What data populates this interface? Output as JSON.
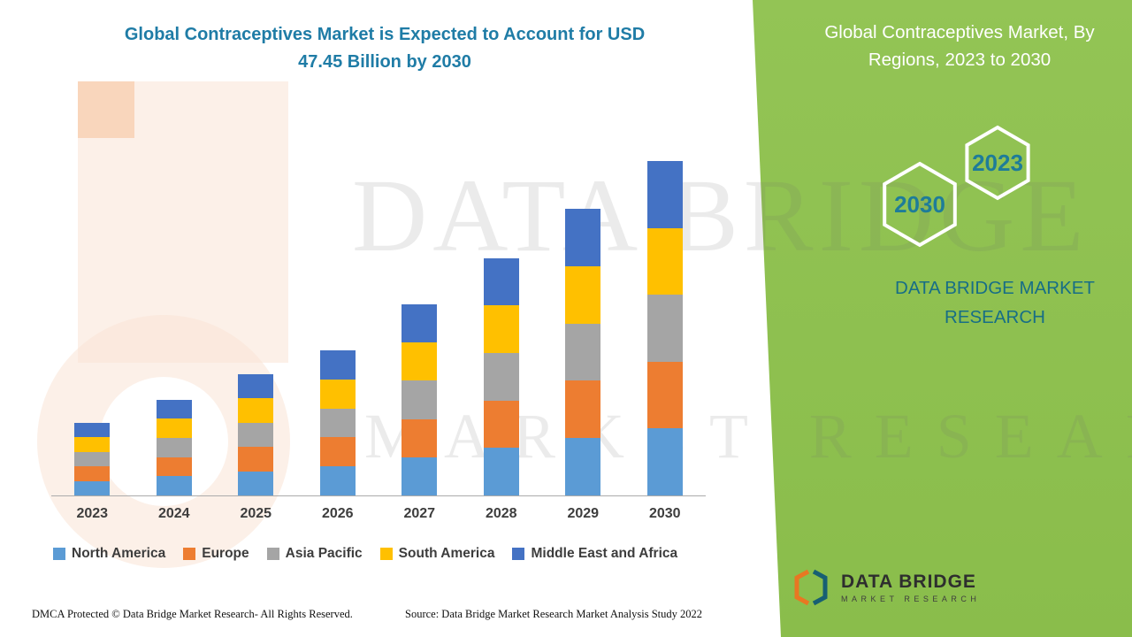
{
  "header": {
    "title_line1": "Global Contraceptives Market is Expected to Account for USD",
    "title_line2": "47.45 Billion by 2030"
  },
  "chart_data": {
    "type": "bar",
    "stacked": true,
    "title": "Global Contraceptives Market is Expected to Account for USD 47.45 Billion by 2030",
    "xlabel": "",
    "ylabel": "",
    "ylim": [
      0,
      47.45
    ],
    "y_axis_visible": false,
    "grid": false,
    "legend_position": "bottom",
    "categories": [
      "2023",
      "2024",
      "2025",
      "2026",
      "2027",
      "2028",
      "2029",
      "2030"
    ],
    "totals_usd_billion": [
      10.3,
      13.6,
      17.2,
      20.6,
      27.1,
      33.7,
      40.7,
      47.45
    ],
    "series": [
      {
        "name": "North America",
        "color": "#5B9BD5",
        "values": [
          2.06,
          2.72,
          3.44,
          4.12,
          5.42,
          6.74,
          8.14,
          9.49
        ]
      },
      {
        "name": "Europe",
        "color": "#ED7D31",
        "values": [
          2.06,
          2.72,
          3.44,
          4.12,
          5.42,
          6.74,
          8.14,
          9.49
        ]
      },
      {
        "name": "Asia Pacific",
        "color": "#A5A5A5",
        "values": [
          2.06,
          2.72,
          3.44,
          4.12,
          5.42,
          6.74,
          8.14,
          9.49
        ]
      },
      {
        "name": "South America",
        "color": "#FFC000",
        "values": [
          2.06,
          2.72,
          3.44,
          4.12,
          5.42,
          6.74,
          8.14,
          9.49
        ]
      },
      {
        "name": "Middle East and Africa",
        "color": "#4472C4",
        "values": [
          2.06,
          2.72,
          3.44,
          4.12,
          5.42,
          6.74,
          8.14,
          9.49
        ]
      }
    ]
  },
  "side_panel": {
    "title": "Global Contraceptives Market, By Regions, 2023 to 2030",
    "hexagons": [
      "2030",
      "2023"
    ],
    "brand": "DATA BRIDGE MARKET RESEARCH",
    "colors": {
      "panel_green": "#8ABD4B",
      "accent_teal": "#176E86",
      "hex_text": "#1E7C99"
    }
  },
  "watermark": {
    "line1": "DATA BRIDGE",
    "line2": "MARKET RESEARCH"
  },
  "logo": {
    "text": "DATA BRIDGE",
    "subtext": "MARKET RESEARCH"
  },
  "footer": {
    "dmca": "DMCA Protected © Data Bridge Market Research- All Rights Reserved.",
    "source": "Source: Data Bridge Market Research Market Analysis Study 2022"
  }
}
